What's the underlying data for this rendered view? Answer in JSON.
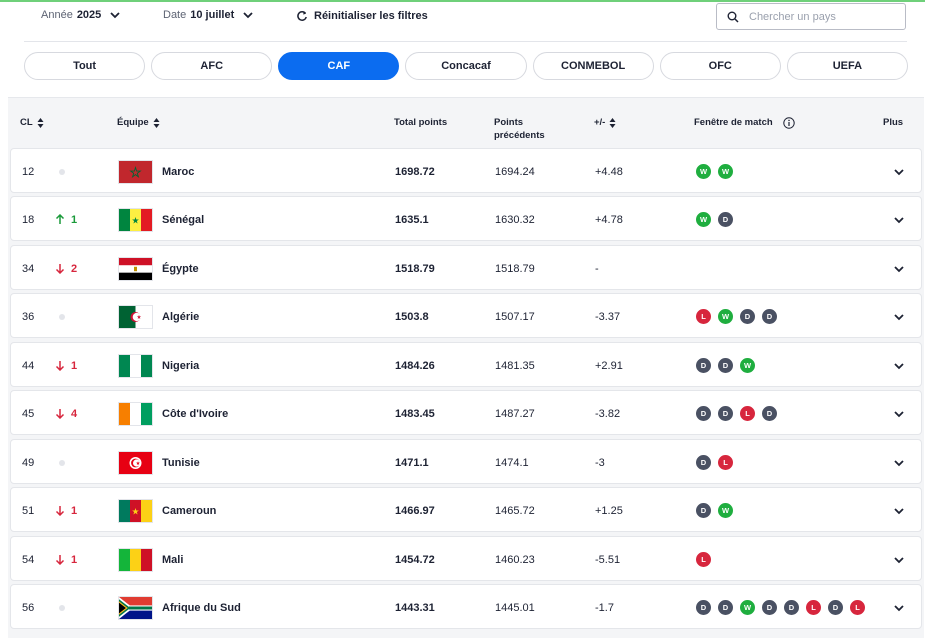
{
  "filters": {
    "year_label": "Année",
    "year_value": "2025",
    "date_label": "Date",
    "date_value": "10 juillet",
    "reset_label": "Réinitialiser les filtres",
    "search_placeholder": "Chercher un pays"
  },
  "tabs": [
    {
      "label": "Tout",
      "active": false
    },
    {
      "label": "AFC",
      "active": false
    },
    {
      "label": "CAF",
      "active": true
    },
    {
      "label": "Concacaf",
      "active": false
    },
    {
      "label": "CONMEBOL",
      "active": false
    },
    {
      "label": "OFC",
      "active": false
    },
    {
      "label": "UEFA",
      "active": false
    }
  ],
  "table": {
    "headers": {
      "rank": "CL",
      "team": "Équipe",
      "total": "Total points",
      "prev": "Points précédents",
      "diff": "+/-",
      "window": "Fenêtre de match",
      "more": "Plus"
    },
    "rows": [
      {
        "rank": "12",
        "move": "",
        "dir": "none",
        "flag": "maroc",
        "team": "Maroc",
        "total": "1698.72",
        "prev": "1694.24",
        "diff": "+4.48",
        "results": [
          "W",
          "W"
        ]
      },
      {
        "rank": "18",
        "move": "1",
        "dir": "up",
        "flag": "senegal",
        "team": "Sénégal",
        "total": "1635.1",
        "prev": "1630.32",
        "diff": "+4.78",
        "results": [
          "W",
          "D"
        ]
      },
      {
        "rank": "34",
        "move": "2",
        "dir": "down",
        "flag": "egypte",
        "team": "Égypte",
        "total": "1518.79",
        "prev": "1518.79",
        "diff": "-",
        "results": []
      },
      {
        "rank": "36",
        "move": "",
        "dir": "none",
        "flag": "algerie",
        "team": "Algérie",
        "total": "1503.8",
        "prev": "1507.17",
        "diff": "-3.37",
        "results": [
          "L",
          "W",
          "D",
          "D"
        ]
      },
      {
        "rank": "44",
        "move": "1",
        "dir": "down",
        "flag": "nigeria",
        "team": "Nigeria",
        "total": "1484.26",
        "prev": "1481.35",
        "diff": "+2.91",
        "results": [
          "D",
          "D",
          "W"
        ]
      },
      {
        "rank": "45",
        "move": "4",
        "dir": "down",
        "flag": "cotedivoire",
        "team": "Côte d'Ivoire",
        "total": "1483.45",
        "prev": "1487.27",
        "diff": "-3.82",
        "results": [
          "D",
          "D",
          "L",
          "D"
        ]
      },
      {
        "rank": "49",
        "move": "",
        "dir": "none",
        "flag": "tunisie",
        "team": "Tunisie",
        "total": "1471.1",
        "prev": "1474.1",
        "diff": "-3",
        "results": [
          "D",
          "L"
        ]
      },
      {
        "rank": "51",
        "move": "1",
        "dir": "down",
        "flag": "cameroun",
        "team": "Cameroun",
        "total": "1466.97",
        "prev": "1465.72",
        "diff": "+1.25",
        "results": [
          "D",
          "W"
        ]
      },
      {
        "rank": "54",
        "move": "1",
        "dir": "down",
        "flag": "mali",
        "team": "Mali",
        "total": "1454.72",
        "prev": "1460.23",
        "diff": "-5.51",
        "results": [
          "L"
        ]
      },
      {
        "rank": "56",
        "move": "",
        "dir": "none",
        "flag": "afriquedusud",
        "team": "Afrique du Sud",
        "total": "1443.31",
        "prev": "1445.01",
        "diff": "-1.7",
        "results": [
          "D",
          "D",
          "W",
          "D",
          "D",
          "L",
          "D",
          "L"
        ]
      }
    ]
  },
  "colors": {
    "accent": "#0b6cf0",
    "win": "#1fae3f",
    "draw": "#4a5163",
    "loss": "#d7263d",
    "up": "#1a9a3a",
    "down": "#d7263d"
  }
}
